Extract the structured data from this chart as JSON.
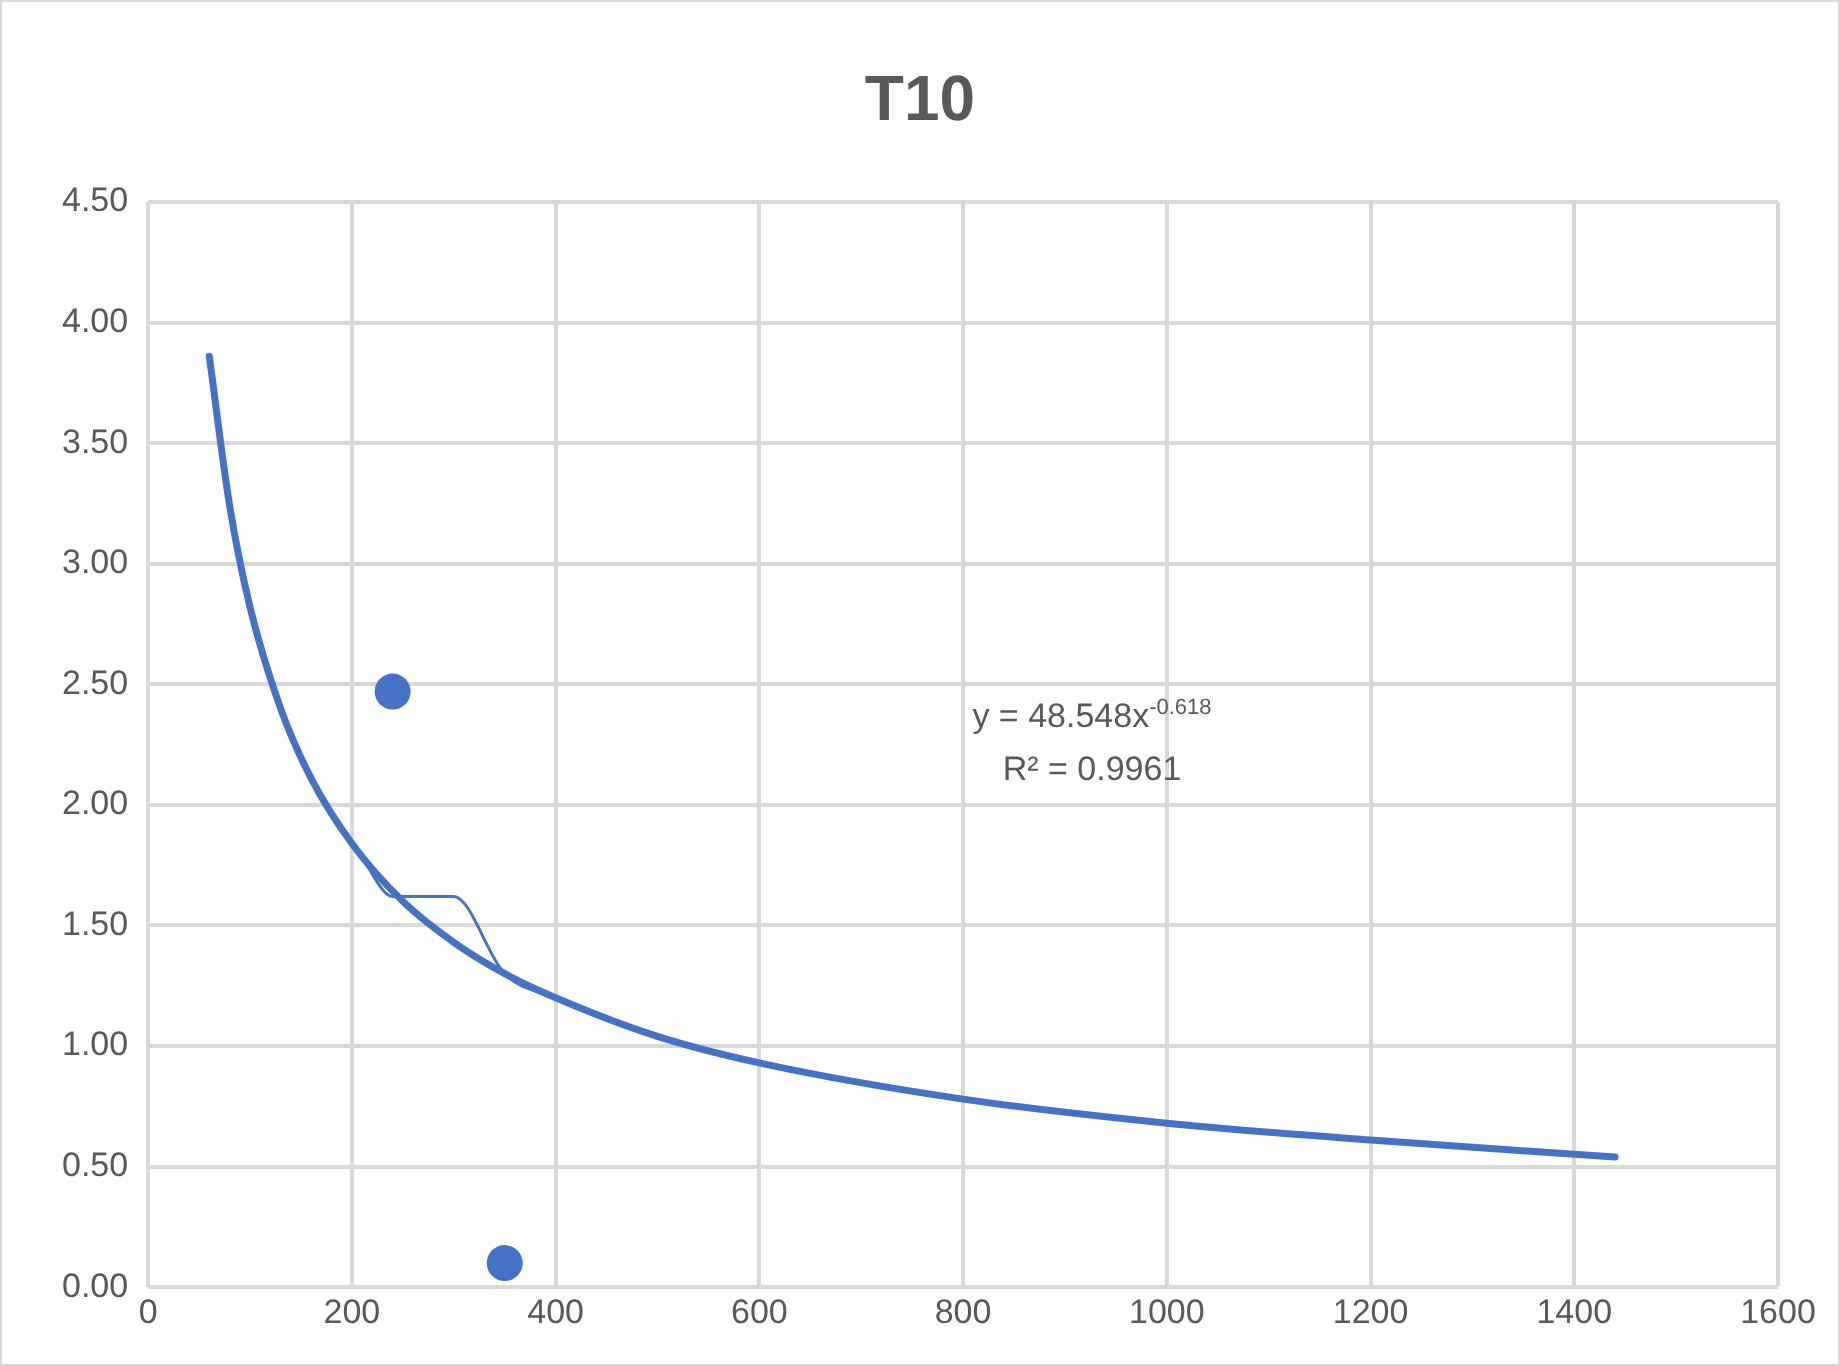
{
  "chart_data": {
    "type": "line",
    "title": "T10",
    "xlim": [
      0,
      1600
    ],
    "xticks": [
      0,
      200,
      400,
      600,
      800,
      1000,
      1200,
      1400,
      1600
    ],
    "ylim": [
      0,
      4.5
    ],
    "yticks": [
      {
        "value": 0,
        "label": "0.00"
      },
      {
        "value": 0.5,
        "label": "0.50"
      },
      {
        "value": 1,
        "label": "1.00"
      },
      {
        "value": 1.5,
        "label": "1.50"
      },
      {
        "value": 2,
        "label": "2.00"
      },
      {
        "value": 2.5,
        "label": "2.50"
      },
      {
        "value": 3,
        "label": "3.00"
      },
      {
        "value": 3.5,
        "label": "3.50"
      },
      {
        "value": 4,
        "label": "4.00"
      },
      {
        "value": 4.5,
        "label": "4.50"
      }
    ],
    "grid": true,
    "legend": false,
    "annotations": [
      "y = 48.548x$^{-0.618}$",
      "R² = 0.9961"
    ],
    "series": [
      {
        "type": "line",
        "color": "#4472c4",
        "marker": "none",
        "x": [
          60,
          90,
          120,
          150,
          180,
          210,
          240,
          300,
          350,
          400,
          480,
          600,
          720,
          960,
          1200,
          1440
        ],
        "values": [
          3.86,
          3.01,
          2.52,
          2.2,
          1.96,
          1.78,
          1.62,
          1.62,
          1.3,
          1.2,
          1.07,
          0.93,
          0.83,
          0.7,
          0.61,
          0.54
        ]
      },
      {
        "type": "line",
        "color": "#4472c4",
        "marker": "none",
        "x": [
          60,
          80,
          100,
          130,
          160,
          200,
          250,
          300,
          350,
          400,
          500,
          600,
          800,
          1000,
          1200,
          1440
        ],
        "values": [
          3.86,
          3.24,
          2.82,
          2.4,
          2.11,
          1.84,
          1.6,
          1.43,
          1.3,
          1.2,
          1.04,
          0.93,
          0.78,
          0.68,
          0.61,
          0.54
        ]
      },
      {
        "type": "scatter",
        "color": "#4472c4",
        "marker": "circle",
        "x": [
          240,
          350
        ],
        "values": [
          2.47,
          0.1
        ]
      }
    ]
  }
}
